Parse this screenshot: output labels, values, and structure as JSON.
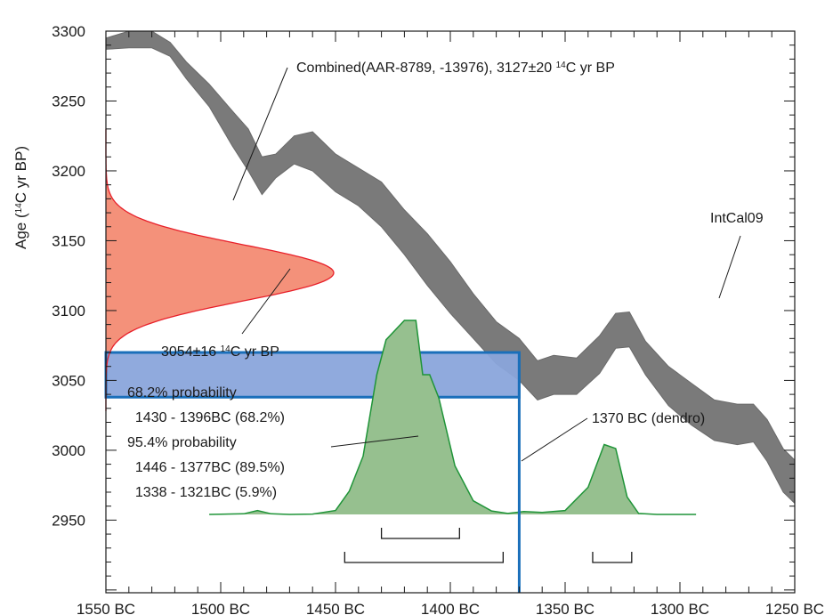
{
  "chart_data": {
    "type": "area",
    "xlim": [
      -1550,
      -1250
    ],
    "ylim": [
      2898,
      3300
    ],
    "grid": false,
    "legend": "none",
    "axes": {
      "ylabel_prefix": "Age (",
      "ylabel_sup": "14",
      "ylabel_suffix": "C yr BP)",
      "x_ticks": [
        {
          "value": -1550,
          "label": "1550 BC"
        },
        {
          "value": -1500,
          "label": "1500 BC"
        },
        {
          "value": -1450,
          "label": "1450 BC"
        },
        {
          "value": -1400,
          "label": "1400 BC"
        },
        {
          "value": -1350,
          "label": "1350 BC"
        },
        {
          "value": -1300,
          "label": "1300 BC"
        },
        {
          "value": -1250,
          "label": "1250 BC"
        }
      ],
      "y_ticks": [
        3300,
        3250,
        3200,
        3150,
        3100,
        3050,
        3000,
        2950
      ]
    },
    "intcal09": {
      "x": [
        -1550,
        -1540,
        -1530,
        -1522,
        -1515,
        -1505,
        -1495,
        -1488,
        -1482,
        -1476,
        -1468,
        -1460,
        -1450,
        -1440,
        -1430,
        -1420,
        -1410,
        -1400,
        -1390,
        -1380,
        -1370,
        -1362,
        -1355,
        -1345,
        -1335,
        -1328,
        -1322,
        -1315,
        -1305,
        -1295,
        -1285,
        -1275,
        -1268,
        -1262,
        -1255,
        -1250
      ],
      "upper": [
        3295,
        3305,
        3305,
        3292,
        3278,
        3262,
        3243,
        3230,
        3210,
        3212,
        3225,
        3228,
        3212,
        3202,
        3192,
        3172,
        3155,
        3135,
        3112,
        3092,
        3080,
        3064,
        3068,
        3066,
        3082,
        3098,
        3099,
        3078,
        3060,
        3048,
        3036,
        3033,
        3033,
        3022,
        3001,
        2993
      ],
      "lower": [
        3287,
        3288,
        3288,
        3282,
        3266,
        3246,
        3218,
        3200,
        3183,
        3195,
        3205,
        3200,
        3185,
        3175,
        3160,
        3140,
        3118,
        3098,
        3080,
        3062,
        3050,
        3036,
        3040,
        3040,
        3055,
        3073,
        3074,
        3054,
        3032,
        3018,
        3007,
        3004,
        3006,
        2992,
        2970,
        2962
      ]
    },
    "combined_curve": {
      "mean": 3127,
      "sigma": 20,
      "label": "Combined(AAR-8789, -13976), 3127±20 ",
      "label_sup": "14",
      "label_suffix": "C yr BP",
      "color": "#f4917a",
      "stroke": "#e8202a"
    },
    "measured_band": {
      "mean": 3054,
      "sigma": 16,
      "label": "3054±16 ",
      "label_sup": "14",
      "label_suffix": "C yr BP",
      "color": "#8aa5db",
      "stroke": "#1a6fba"
    },
    "calibrated_distribution": {
      "color": "#96c08f",
      "stroke": "#1f9438",
      "x": [
        -1505,
        -1490,
        -1484,
        -1478,
        -1470,
        -1460,
        -1450,
        -1444,
        -1438,
        -1432,
        -1428,
        -1420,
        -1415,
        -1412,
        -1409,
        -1405,
        -1398,
        -1390,
        -1382,
        -1375,
        -1368,
        -1360,
        -1350,
        -1340,
        -1333,
        -1328,
        -1323,
        -1318,
        -1310,
        -1300,
        -1293
      ],
      "density": [
        0,
        0.003,
        0.02,
        0.003,
        0,
        0.002,
        0.02,
        0.12,
        0.3,
        0.72,
        0.9,
        1.0,
        1.0,
        0.72,
        0.72,
        0.6,
        0.25,
        0.07,
        0.018,
        0.005,
        0.015,
        0.01,
        0.02,
        0.14,
        0.36,
        0.34,
        0.09,
        0.005,
        0.0,
        0.0,
        0.0
      ],
      "probability_text": [
        "68.2% probability",
        "  1430 - 1396BC (68.2%)",
        "95.4% probability",
        "  1446 - 1377BC (89.5%)",
        "  1338 - 1321BC (5.9%)"
      ],
      "ranges_68": [
        [
          -1430,
          -1396
        ]
      ],
      "ranges_95": [
        [
          -1446,
          -1377
        ],
        [
          -1338,
          -1321
        ]
      ]
    },
    "dendro": {
      "x": -1370,
      "label": "1370 BC (dendro)",
      "color": "#1a6fba"
    },
    "intcal_label": "IntCal09"
  }
}
